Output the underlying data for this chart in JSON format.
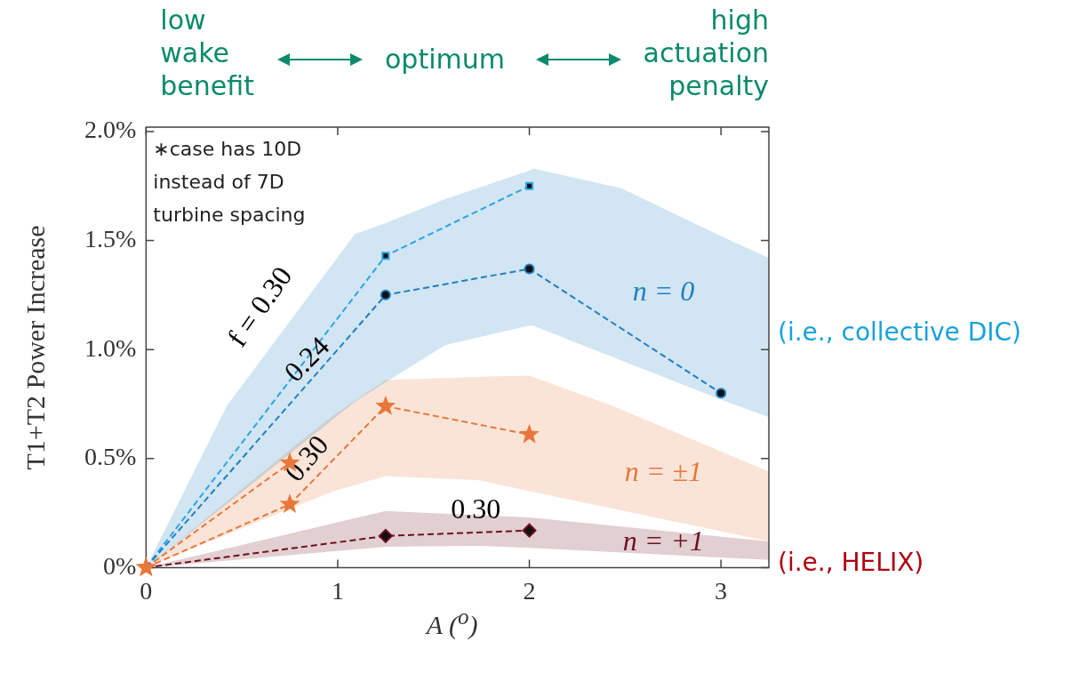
{
  "chart_data": {
    "type": "line",
    "xlabel": "A ($^{o}$)",
    "ylabel": "T1+T2 Power Increase",
    "xlim": [
      0,
      3.25
    ],
    "xticks": [
      0,
      1,
      2,
      3
    ],
    "ylim": [
      0,
      2.02
    ],
    "yticks": [
      {
        "value": 0,
        "label": "0%"
      },
      {
        "value": 0.5,
        "label": "0.5%"
      },
      {
        "value": 1,
        "label": "1.0%"
      },
      {
        "value": 1.5,
        "label": "1.5%"
      },
      {
        "value": 2,
        "label": "2.0%"
      }
    ],
    "grid": false,
    "legend": false,
    "line_style": "dashed",
    "annotations": [
      "low wake benefit",
      "optimum",
      "high actuation penalty",
      "∗case has 10D instead of 7D turbine spacing",
      "(i.e., collective DIC)",
      "(i.e., HELIX)",
      "f = 0.30",
      "0.24",
      "0.30",
      {
        "text": "0.30",
        "x": 1.72,
        "y": 0.26
      }
    ],
    "series": [
      {
        "name": "n = 0",
        "color": "#1f7fc0",
        "marker": "circle",
        "x": [
          0,
          0.42,
          1.09,
          1.25,
          1.56,
          2,
          2.02,
          2.48,
          3,
          3.25
        ],
        "values": [
          0,
          null,
          null,
          1.25,
          null,
          1.37,
          null,
          null,
          0.8,
          null
        ],
        "upper": [
          0,
          0.74,
          1.53,
          1.58,
          1.69,
          1.82,
          1.83,
          1.74,
          1.52,
          1.42
        ],
        "lower": [
          0,
          0.29,
          0.76,
          0.85,
          1.02,
          1.11,
          1.11,
          0.95,
          0.77,
          0.69
        ]
      },
      {
        "color": "#2aa3e6",
        "marker": "square",
        "x": [
          0,
          1.25,
          2
        ],
        "values": [
          0,
          1.43,
          1.75
        ]
      },
      {
        "name": "n = ±1",
        "color": "#e8773a",
        "marker": "star",
        "x": [
          0,
          0.75,
          0.98,
          1.25,
          1.74,
          2,
          2.44,
          3.25
        ],
        "values": [
          0,
          0.29,
          null,
          0.74,
          null,
          0.61,
          null,
          null
        ],
        "upper": [
          0,
          0.54,
          0.7,
          0.86,
          0.875,
          0.88,
          0.74,
          0.44
        ],
        "lower": [
          0,
          0.27,
          0.35,
          0.42,
          0.4,
          0.35,
          0.27,
          0.12
        ]
      },
      {
        "color": "#e8773a",
        "marker": "star",
        "x": [
          0,
          0.75
        ],
        "values": [
          0,
          0.48
        ]
      },
      {
        "name": "n = +1",
        "color": "#6e1020",
        "marker": "diamond",
        "x": [
          0,
          1.25,
          1.74,
          2,
          3.25
        ],
        "values": [
          0,
          0.145,
          null,
          0.17,
          null
        ],
        "upper": [
          0,
          0.26,
          0.24,
          0.23,
          0.12
        ],
        "lower": [
          0,
          0.095,
          0.1,
          0.09,
          0.035
        ]
      }
    ]
  }
}
